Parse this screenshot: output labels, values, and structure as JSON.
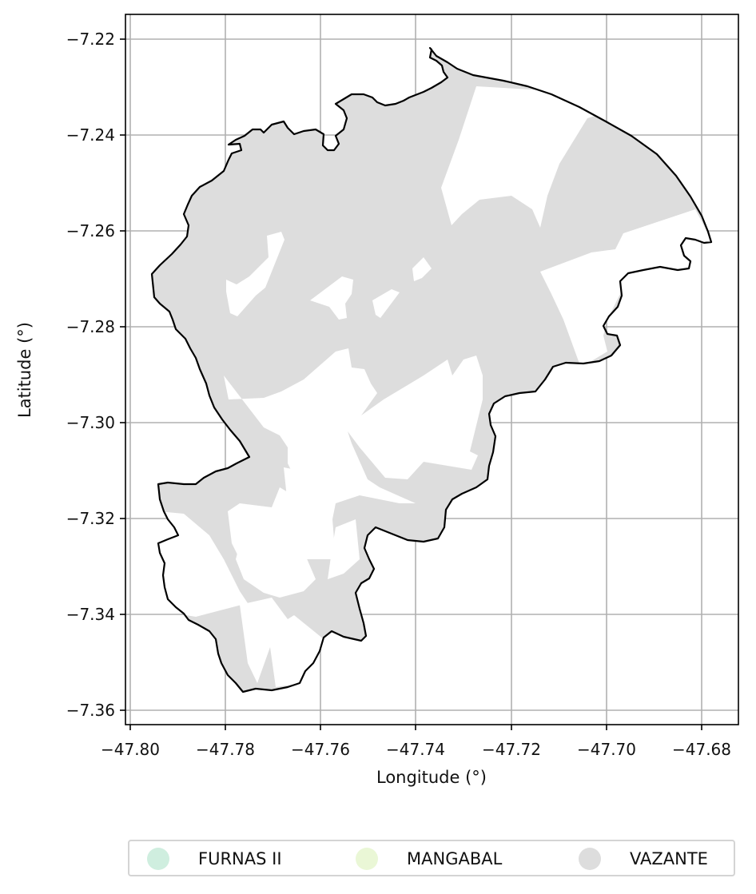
{
  "map": {
    "xlabel": "Longitude (°)",
    "ylabel": "Latitude (°)",
    "x_ticks": [
      "−47.80",
      "−47.78",
      "−47.76",
      "−47.74",
      "−47.72",
      "−47.70",
      "−47.68"
    ],
    "y_ticks": [
      "−7.22",
      "−7.24",
      "−7.26",
      "−7.28",
      "−7.30",
      "−7.32",
      "−7.34",
      "−7.36"
    ],
    "x_range": [
      -47.801,
      -47.674
    ],
    "y_range": [
      -7.2162,
      -7.3622
    ],
    "grid": true,
    "boundary_color": "#000000",
    "fill_color": "#dddddd",
    "legend_placement": "below"
  },
  "legend": {
    "items": [
      {
        "label": "FURNAS II",
        "color": "#cfeedf"
      },
      {
        "label": "MANGABAL",
        "color": "#eaf7d6"
      },
      {
        "label": "VAZANTE",
        "color": "#dddddd"
      }
    ]
  }
}
